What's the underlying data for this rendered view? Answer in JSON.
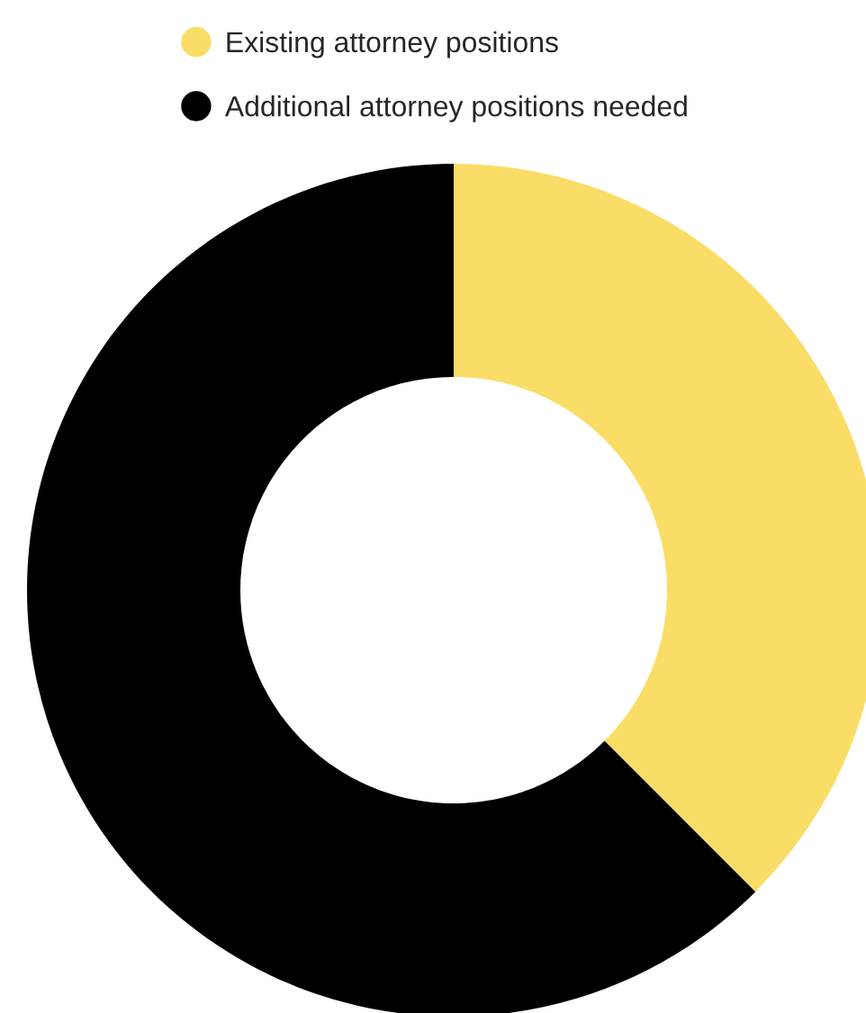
{
  "chart_data": {
    "type": "donut",
    "categories": [
      "Existing attorney positions",
      "Additional attorney positions needed"
    ],
    "values": [
      37.5,
      62.5
    ],
    "colors": [
      "#f9dd66",
      "#000000"
    ],
    "legend": "top"
  }
}
